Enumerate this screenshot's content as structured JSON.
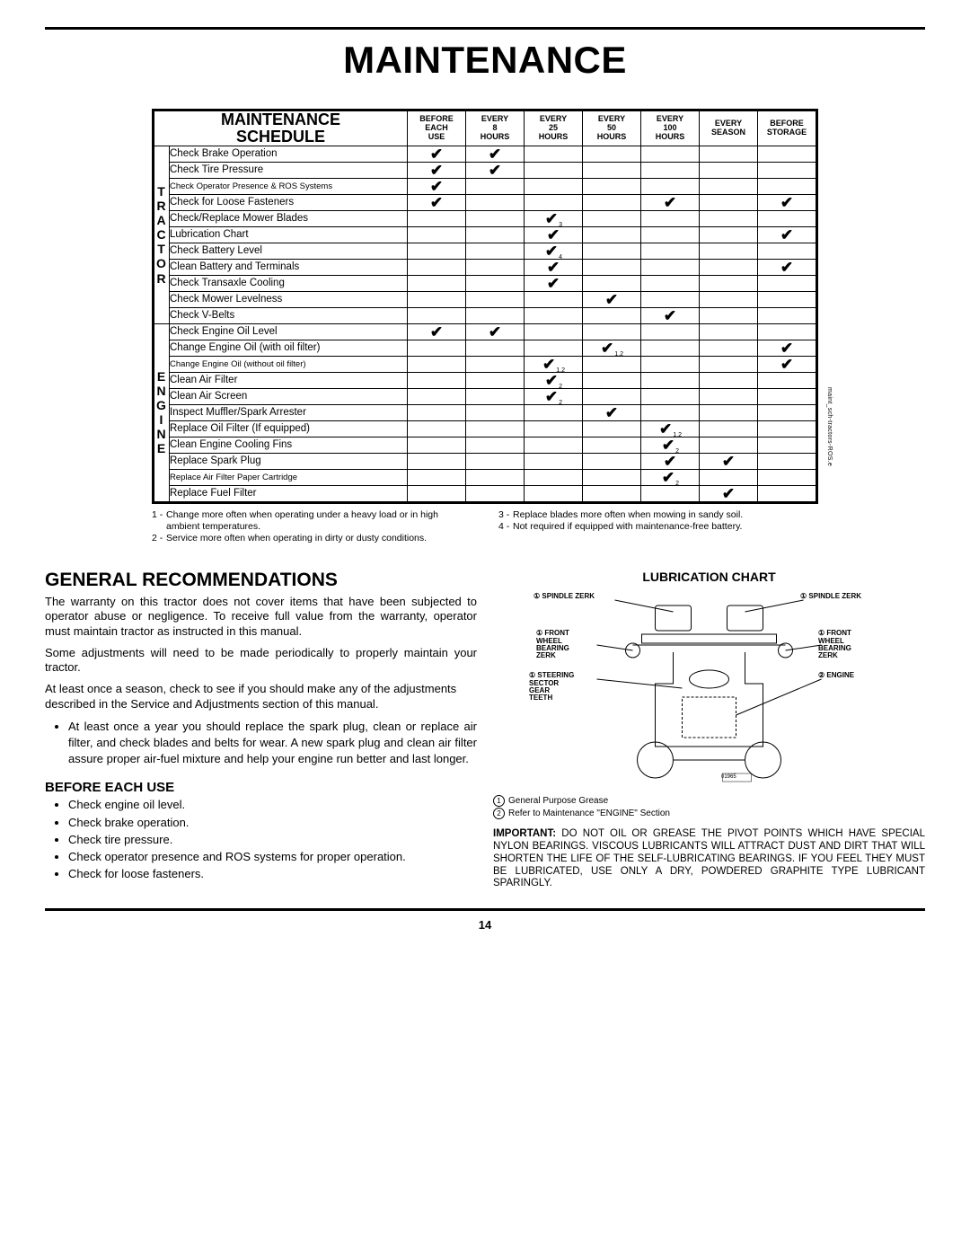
{
  "title": "MAINTENANCE",
  "pageNumber": "14",
  "sideNote": "maint_sch-tractors-ROS.e",
  "schedule": {
    "headerLabel": "MAINTENANCE\nSCHEDULE",
    "columns": [
      "BEFORE\nEACH\nUSE",
      "EVERY\n8\nHOURS",
      "EVERY\n25\nHOURS",
      "EVERY\n50\nHOURS",
      "EVERY\n100\nHOURS",
      "EVERY\nSEASON",
      "BEFORE\nSTORAGE"
    ],
    "groups": [
      {
        "label": "T\nR\nA\nC\nT\nO\nR",
        "rows": [
          {
            "task": "Check Brake Operation",
            "ticks": [
              "✔",
              "✔",
              "",
              "",
              "",
              "",
              ""
            ]
          },
          {
            "task": "Check Tire Pressure",
            "ticks": [
              "✔",
              "✔",
              "",
              "",
              "",
              "",
              ""
            ]
          },
          {
            "task": "Check Operator Presence & ROS Systems",
            "small": true,
            "ticks": [
              "✔",
              "",
              "",
              "",
              "",
              "",
              ""
            ]
          },
          {
            "task": "Check for Loose Fasteners",
            "ticks": [
              "✔",
              "",
              "",
              "",
              "✔",
              "",
              "✔"
            ]
          },
          {
            "task": "Check/Replace Mower Blades",
            "ticks": [
              "",
              "",
              "✔₃",
              "",
              "",
              "",
              ""
            ],
            "subs": [
              "",
              "",
              "3",
              "",
              "",
              "",
              ""
            ]
          },
          {
            "task": "Lubrication Chart",
            "ticks": [
              "",
              "",
              "✔",
              "",
              "",
              "",
              "✔"
            ]
          },
          {
            "task": "Check Battery Level",
            "ticks": [
              "",
              "",
              "✔₄",
              "",
              "",
              "",
              ""
            ],
            "subs": [
              "",
              "",
              "4",
              "",
              "",
              "",
              ""
            ]
          },
          {
            "task": "Clean Battery and Terminals",
            "ticks": [
              "",
              "",
              "✔",
              "",
              "",
              "",
              "✔"
            ]
          },
          {
            "task": "Check Transaxle Cooling",
            "ticks": [
              "",
              "",
              "✔",
              "",
              "",
              "",
              ""
            ]
          },
          {
            "task": "Check Mower Levelness",
            "ticks": [
              "",
              "",
              "",
              "✔",
              "",
              "",
              ""
            ]
          },
          {
            "task": "Check V-Belts",
            "ticks": [
              "",
              "",
              "",
              "",
              "✔",
              "",
              ""
            ]
          }
        ]
      },
      {
        "label": "E\nN\nG\nI\nN\nE",
        "rows": [
          {
            "task": "Check Engine Oil Level",
            "ticks": [
              "✔",
              "✔",
              "",
              "",
              "",
              "",
              ""
            ]
          },
          {
            "task": "Change Engine Oil (with oil filter)",
            "ticks": [
              "",
              "",
              "",
              "✔",
              "",
              "",
              "✔"
            ],
            "subs": [
              "",
              "",
              "",
              "1,2",
              "",
              "",
              ""
            ]
          },
          {
            "task": "Change Engine Oil (without oil filter)",
            "small": true,
            "ticks": [
              "",
              "",
              "✔",
              "",
              "",
              "",
              "✔"
            ],
            "subs": [
              "",
              "",
              "1,2",
              "",
              "",
              "",
              ""
            ]
          },
          {
            "task": "Clean Air Filter",
            "ticks": [
              "",
              "",
              "✔",
              "",
              "",
              "",
              ""
            ],
            "subs": [
              "",
              "",
              "2",
              "",
              "",
              "",
              ""
            ]
          },
          {
            "task": "Clean Air Screen",
            "ticks": [
              "",
              "",
              "✔",
              "",
              "",
              "",
              ""
            ],
            "subs": [
              "",
              "",
              "2",
              "",
              "",
              "",
              ""
            ]
          },
          {
            "task": "Inspect Muffler/Spark Arrester",
            "ticks": [
              "",
              "",
              "",
              "✔",
              "",
              "",
              ""
            ]
          },
          {
            "task": "Replace Oil Filter (If equipped)",
            "ticks": [
              "",
              "",
              "",
              "",
              "✔",
              "",
              ""
            ],
            "subs": [
              "",
              "",
              "",
              "",
              "1,2",
              "",
              ""
            ]
          },
          {
            "task": "Clean Engine Cooling Fins",
            "ticks": [
              "",
              "",
              "",
              "",
              "✔",
              "",
              ""
            ],
            "subs": [
              "",
              "",
              "",
              "",
              "2",
              "",
              ""
            ]
          },
          {
            "task": "Replace Spark Plug",
            "ticks": [
              "",
              "",
              "",
              "",
              "✔",
              "✔",
              ""
            ]
          },
          {
            "task": "Replace Air Filter Paper Cartridge",
            "small": true,
            "ticks": [
              "",
              "",
              "",
              "",
              "✔",
              "",
              ""
            ],
            "subs": [
              "",
              "",
              "",
              "",
              "2",
              "",
              ""
            ]
          },
          {
            "task": "Replace Fuel Filter",
            "ticks": [
              "",
              "",
              "",
              "",
              "",
              "✔",
              ""
            ]
          }
        ]
      }
    ]
  },
  "footnotes": {
    "left": [
      {
        "n": "1 -",
        "t": "Change more often when operating under a heavy load or in high ambient temperatures."
      },
      {
        "n": "2 -",
        "t": "Service more often when operating in dirty or dusty conditions."
      }
    ],
    "right": [
      {
        "n": "3 -",
        "t": "Replace blades more often when mowing in sandy soil."
      },
      {
        "n": "4 -",
        "t": "Not required if equipped with maintenance-free battery."
      }
    ]
  },
  "general": {
    "heading": "GENERAL RECOMMENDATIONS",
    "p1": "The warranty on this tractor does not cover items that have been subjected to operator abuse or negligence. To receive full value from the warranty, operator must maintain tractor as instructed in this manual.",
    "p2": "Some adjustments will need to be made periodically to properly maintain your tractor.",
    "p3": "At least once a season, check to see if you should make any of the adjustments described in the Service and Adjustments section of this manual.",
    "bullet1": "At least once a year you should replace the spark plug, clean or replace air filter, and check blades and belts for wear. A new spark plug and clean air filter assure proper air-fuel mixture and help your engine run better and last longer."
  },
  "beforeUse": {
    "heading": "BEFORE EACH USE",
    "items": [
      "Check engine oil level.",
      "Check brake operation.",
      "Check tire pressure.",
      "Check operator presence and ROS systems for proper operation.",
      "Check for loose fasteners."
    ]
  },
  "lube": {
    "title": "LUBRICATION CHART",
    "labels": {
      "spindleL": "① SPINDLE ZERK",
      "spindleR": "① SPINDLE ZERK",
      "frontL": "① FRONT\nWHEEL\nBEARING\nZERK",
      "frontR": "① FRONT\nWHEEL\nBEARING\nZERK",
      "steer": "① STEERING\nSECTOR\nGEAR\nTEETH",
      "engine": "② ENGINE",
      "partNo": "01965"
    },
    "legend": [
      {
        "n": "①",
        "t": "General Purpose Grease"
      },
      {
        "n": "②",
        "t": "Refer to Maintenance \"ENGINE\" Section"
      }
    ]
  },
  "important": {
    "label": "IMPORTANT:",
    "text": "DO NOT OIL OR GREASE THE PIVOT POINTS WHICH HAVE SPECIAL NYLON BEARINGS. VISCOUS LUBRICANTS WILL ATTRACT DUST AND DIRT THAT WILL SHORTEN THE LIFE OF THE SELF-LUBRICATING BEARINGS. IF YOU FEEL THEY MUST BE LUBRICATED, USE ONLY A DRY, POWDERED GRAPHITE TYPE LUBRICANT SPARINGLY."
  }
}
